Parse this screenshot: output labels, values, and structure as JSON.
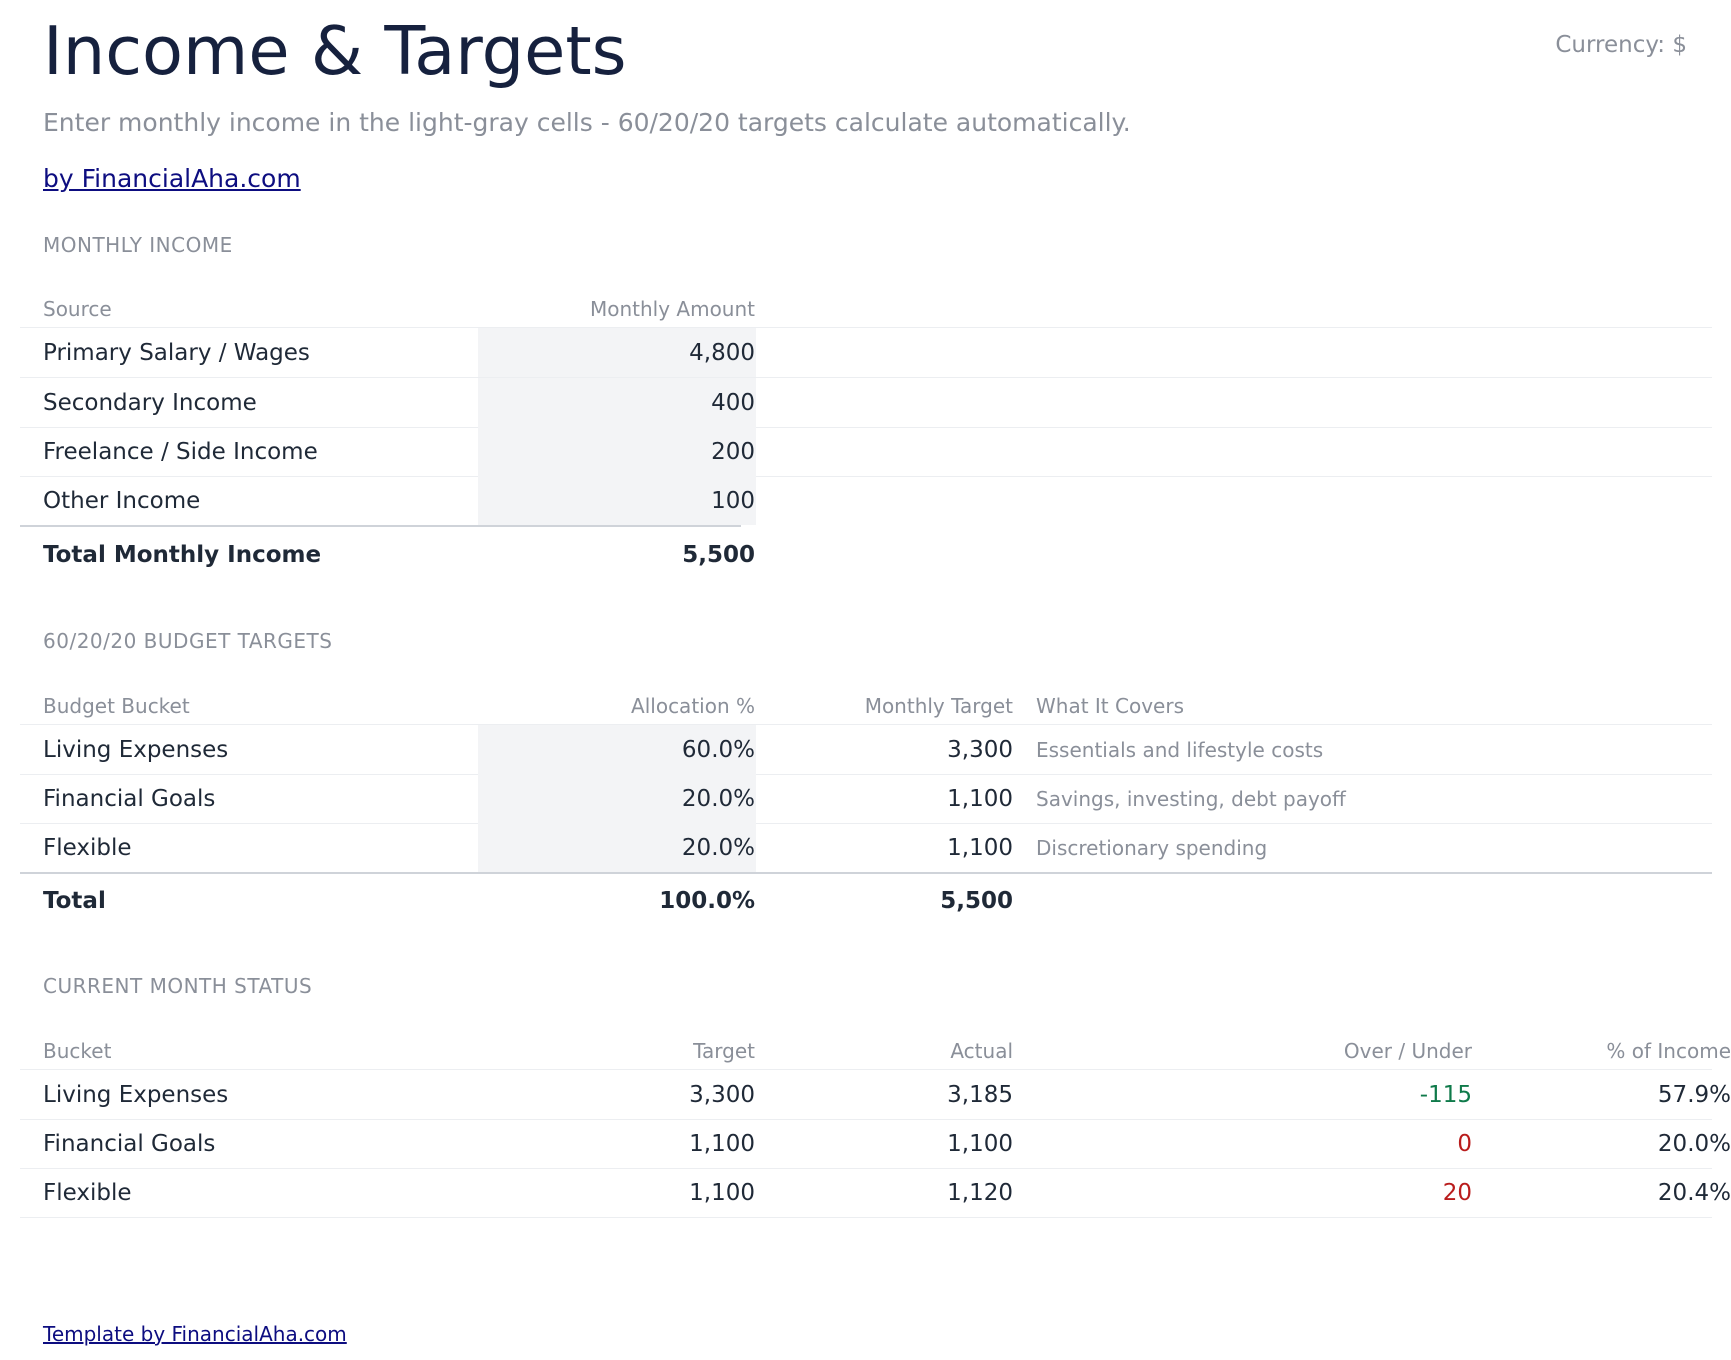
{
  "header": {
    "title": "Income & Targets",
    "currency": "Currency: $",
    "subtitle": "Enter monthly income in the light-gray cells - 60/20/20 targets calculate automatically.",
    "brand_link": "by FinancialAha.com"
  },
  "income": {
    "section_label": "MONTHLY INCOME",
    "headers": {
      "source": "Source",
      "amount": "Monthly Amount"
    },
    "rows": [
      {
        "source": "Primary Salary / Wages",
        "amount": "4,800"
      },
      {
        "source": "Secondary Income",
        "amount": "400"
      },
      {
        "source": "Freelance / Side Income",
        "amount": "200"
      },
      {
        "source": "Other Income",
        "amount": "100"
      }
    ],
    "total": {
      "label": "Total Monthly Income",
      "amount": "5,500"
    }
  },
  "targets": {
    "section_label": "60/20/20 BUDGET TARGETS",
    "headers": {
      "bucket": "Budget Bucket",
      "allocation": "Allocation %",
      "target": "Monthly Target",
      "covers": "What It Covers"
    },
    "rows": [
      {
        "bucket": "Living Expenses",
        "allocation": "60.0%",
        "target": "3,300",
        "covers": "Essentials and lifestyle costs"
      },
      {
        "bucket": "Financial Goals",
        "allocation": "20.0%",
        "target": "1,100",
        "covers": "Savings, investing, debt payoff"
      },
      {
        "bucket": "Flexible",
        "allocation": "20.0%",
        "target": "1,100",
        "covers": "Discretionary spending"
      }
    ],
    "total": {
      "label": "Total",
      "allocation": "100.0%",
      "target": "5,500"
    }
  },
  "status": {
    "section_label": "CURRENT MONTH STATUS",
    "headers": {
      "bucket": "Bucket",
      "target": "Target",
      "actual": "Actual",
      "over_under": "Over / Under",
      "pct_income": "% of Income"
    },
    "rows": [
      {
        "bucket": "Living Expenses",
        "target": "3,300",
        "actual": "3,185",
        "over_under": "-115",
        "pct_income": "57.9%"
      },
      {
        "bucket": "Financial Goals",
        "target": "1,100",
        "actual": "1,100",
        "over_under": "0",
        "pct_income": "20.0%"
      },
      {
        "bucket": "Flexible",
        "target": "1,100",
        "actual": "1,120",
        "over_under": "20",
        "pct_income": "20.4%"
      }
    ]
  },
  "footer": {
    "link": "Template by FinancialAha.com"
  },
  "colors": {
    "under": "#0f7a4a",
    "over": "#b91c1c",
    "input_cell": "#f3f4f6"
  }
}
